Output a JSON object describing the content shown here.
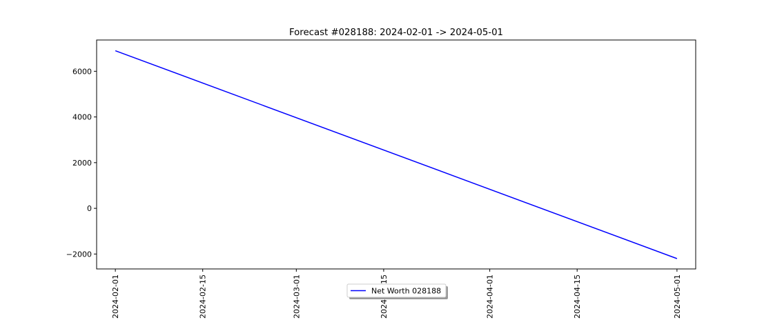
{
  "chart_data": {
    "type": "line",
    "title": "Forecast #028188: 2024-02-01 -> 2024-05-01",
    "xlabel": "",
    "ylabel": "",
    "x_type": "date",
    "xlim": [
      "2024-01-29",
      "2024-05-04"
    ],
    "ylim": [
      -2653,
      7369
    ],
    "x_ticks": [
      "2024-02-01",
      "2024-02-15",
      "2024-03-01",
      "2024-03-15",
      "2024-04-01",
      "2024-04-15",
      "2024-05-01"
    ],
    "y_ticks": [
      -2000,
      0,
      2000,
      4000,
      6000
    ],
    "y_tick_labels": [
      "−2000",
      "0",
      "2000",
      "4000",
      "6000"
    ],
    "grid": false,
    "legend_position": "lower center",
    "series": [
      {
        "name": "Net Worth 028188",
        "color": "#0000ff",
        "x": [
          "2024-02-01",
          "2024-05-01"
        ],
        "y": [
          6900,
          -2200
        ]
      }
    ]
  }
}
